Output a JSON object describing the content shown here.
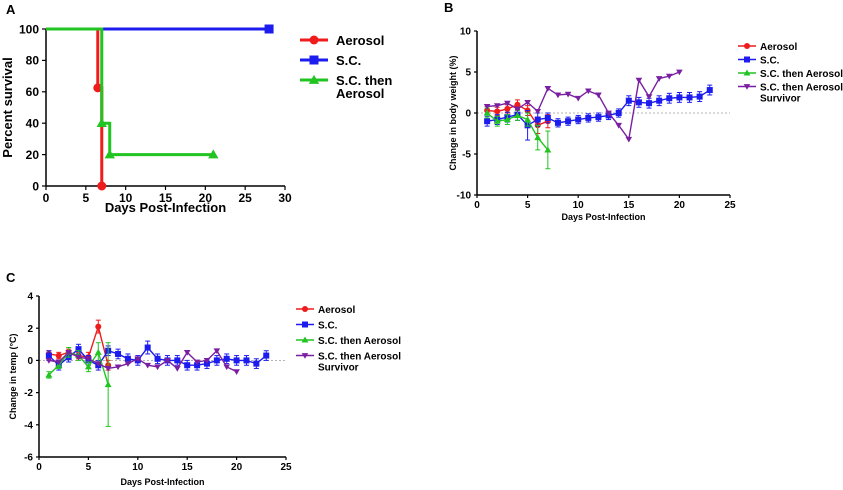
{
  "colors": {
    "aerosol": "#ee1c1c",
    "sc": "#1c1cee",
    "sc_then_aerosol": "#22c422",
    "survivor": "#7a1fa2",
    "axis": "#000000",
    "zero_line": "#9a9a9a"
  },
  "chart_data": [
    {
      "id": "A",
      "panel_label": "A",
      "type": "line",
      "step": true,
      "title": "",
      "xlabel": "Days Post-Infection",
      "ylabel": "Percent survival",
      "xlim": [
        0,
        30
      ],
      "ylim": [
        0,
        100
      ],
      "xticks": [
        0,
        5,
        10,
        15,
        20,
        25,
        30
      ],
      "yticks": [
        0,
        20,
        40,
        60,
        80,
        100
      ],
      "grid": false,
      "legend": "right",
      "series": [
        {
          "name": "Aerosol",
          "color_key": "aerosol",
          "marker": "circle",
          "legend_lines": [
            "Aerosol"
          ],
          "x": [
            0,
            6.5,
            6.5,
            7,
            7
          ],
          "y": [
            100,
            100,
            62.5,
            62.5,
            0
          ],
          "marker_index": [
            2,
            4
          ]
        },
        {
          "name": "S.C.",
          "color_key": "sc",
          "marker": "square",
          "legend_lines": [
            "S.C."
          ],
          "x": [
            0,
            28
          ],
          "y": [
            100,
            100
          ],
          "marker_index": [
            1
          ]
        },
        {
          "name": "S.C. then Aerosol",
          "color_key": "sc_then_aerosol",
          "marker": "triangle",
          "legend_lines": [
            "S.C. then",
            "Aerosol"
          ],
          "x": [
            0,
            7,
            7,
            8,
            8,
            21
          ],
          "y": [
            100,
            100,
            40,
            40,
            20,
            20
          ],
          "marker_index": [
            2,
            4,
            5
          ]
        }
      ]
    },
    {
      "id": "B",
      "panel_label": "B",
      "type": "line",
      "title": "",
      "xlabel": "Days Post-Infection",
      "ylabel": "Change in body weight (%)",
      "xlim": [
        0,
        25
      ],
      "ylim": [
        -10,
        10
      ],
      "xticks": [
        0,
        5,
        10,
        15,
        20,
        25
      ],
      "yticks": [
        -10,
        -5,
        0,
        5,
        10
      ],
      "grid": false,
      "reference_line": 0,
      "legend": "top-right",
      "series": [
        {
          "name": "Aerosol",
          "color_key": "aerosol",
          "marker": "circle",
          "legend_lines": [
            "Aerosol"
          ],
          "x": [
            1,
            2,
            3,
            4,
            5,
            6,
            7
          ],
          "y": [
            0.3,
            0.2,
            0.5,
            1.0,
            0.3,
            -1.5,
            -1.0
          ],
          "err": [
            0.5,
            0.5,
            0.5,
            0.6,
            0.6,
            1.0,
            0.8
          ]
        },
        {
          "name": "S.C.",
          "color_key": "sc",
          "marker": "square",
          "legend_lines": [
            "S.C."
          ],
          "x": [
            1,
            2,
            3,
            4,
            5,
            6,
            7,
            8,
            9,
            10,
            11,
            12,
            13,
            14,
            15,
            16,
            17,
            18,
            19,
            20,
            21,
            22,
            23
          ],
          "y": [
            -1.0,
            -0.8,
            -0.5,
            -0.2,
            -1.5,
            -0.8,
            -0.6,
            -1.2,
            -1.0,
            -0.8,
            -0.6,
            -0.5,
            -0.3,
            0.0,
            1.5,
            1.3,
            1.2,
            1.5,
            1.8,
            1.9,
            1.9,
            2.0,
            2.8
          ],
          "err": [
            0.6,
            0.6,
            0.6,
            0.7,
            1.8,
            0.8,
            0.6,
            0.5,
            0.5,
            0.5,
            0.5,
            0.5,
            0.5,
            0.5,
            0.6,
            0.6,
            0.6,
            0.6,
            0.6,
            0.6,
            0.6,
            0.6,
            0.6
          ]
        },
        {
          "name": "S.C. then Aerosol",
          "color_key": "sc_then_aerosol",
          "marker": "triangle",
          "legend_lines": [
            "S.C. then Aerosol"
          ],
          "x": [
            1,
            2,
            3,
            4,
            5,
            6,
            7
          ],
          "y": [
            0.0,
            -1.0,
            -0.8,
            -0.3,
            -0.8,
            -3.0,
            -4.5
          ],
          "err": [
            0.6,
            0.6,
            0.6,
            0.6,
            0.8,
            1.5,
            2.3
          ]
        },
        {
          "name": "S.C. then Aerosol Survivor",
          "color_key": "survivor",
          "marker": "triangle-down",
          "legend_lines": [
            "S.C. then Aerosol",
            "Survivor"
          ],
          "x": [
            1,
            2,
            3,
            4,
            5,
            6,
            7,
            8,
            9,
            10,
            11,
            12,
            13,
            14,
            15,
            16,
            17,
            18,
            19,
            20
          ],
          "y": [
            0.8,
            0.9,
            1.2,
            0.5,
            1.3,
            0.2,
            3.0,
            2.2,
            2.3,
            1.8,
            2.7,
            2.2,
            0.0,
            -1.5,
            -3.2,
            4.0,
            2.0,
            4.2,
            4.5,
            5.0
          ]
        }
      ]
    },
    {
      "id": "C",
      "panel_label": "C",
      "type": "line",
      "title": "",
      "xlabel": "Days Post-Infection",
      "ylabel": "Change in temp (°C)",
      "xlim": [
        0,
        25
      ],
      "ylim": [
        -6,
        4
      ],
      "xticks": [
        0,
        5,
        10,
        15,
        20,
        25
      ],
      "yticks": [
        -6,
        -4,
        -2,
        0,
        2,
        4
      ],
      "grid": false,
      "reference_line": 0,
      "legend": "right",
      "series": [
        {
          "name": "Aerosol",
          "color_key": "aerosol",
          "marker": "circle",
          "legend_lines": [
            "Aerosol"
          ],
          "x": [
            1,
            2,
            3,
            4,
            5,
            6,
            7
          ],
          "y": [
            0.4,
            0.3,
            0.5,
            0.3,
            0.2,
            2.1,
            -0.3
          ],
          "err": [
            0.2,
            0.2,
            0.2,
            0.2,
            0.3,
            0.4,
            0.3
          ]
        },
        {
          "name": "S.C.",
          "color_key": "sc",
          "marker": "square",
          "legend_lines": [
            "S.C."
          ],
          "x": [
            1,
            2,
            3,
            4,
            5,
            6,
            7,
            8,
            9,
            10,
            11,
            12,
            13,
            14,
            15,
            16,
            17,
            18,
            19,
            20,
            21,
            22,
            23
          ],
          "y": [
            0.3,
            -0.3,
            0.2,
            0.7,
            0.0,
            -0.3,
            0.6,
            0.4,
            0.1,
            0.0,
            0.8,
            0.1,
            0.0,
            0.0,
            -0.3,
            -0.3,
            -0.2,
            0.0,
            0.1,
            0.0,
            0.0,
            -0.2,
            0.3
          ],
          "err": [
            0.3,
            0.3,
            0.3,
            0.3,
            0.3,
            0.3,
            0.3,
            0.3,
            0.3,
            0.3,
            0.4,
            0.3,
            0.3,
            0.3,
            0.3,
            0.3,
            0.3,
            0.3,
            0.3,
            0.3,
            0.3,
            0.3,
            0.3
          ]
        },
        {
          "name": "S.C. then Aerosol",
          "color_key": "sc_then_aerosol",
          "marker": "triangle",
          "legend_lines": [
            "S.C. then Aerosol"
          ],
          "x": [
            1,
            2,
            3,
            4,
            5,
            6,
            7
          ],
          "y": [
            -0.9,
            -0.3,
            0.5,
            0.3,
            -0.4,
            0.5,
            -1.5
          ],
          "err": [
            0.2,
            0.2,
            0.3,
            0.3,
            0.3,
            0.6,
            2.6
          ]
        },
        {
          "name": "S.C. then Aerosol Survivor",
          "color_key": "survivor",
          "marker": "triangle-down",
          "legend_lines": [
            "S.C. then Aerosol",
            "Survivor"
          ],
          "x": [
            1,
            2,
            3,
            4,
            5,
            6,
            7,
            8,
            9,
            10,
            11,
            12,
            13,
            14,
            15,
            16,
            17,
            18,
            19,
            20
          ],
          "y": [
            0.0,
            -0.1,
            0.5,
            0.2,
            0.1,
            -0.2,
            -0.5,
            -0.4,
            -0.2,
            0.1,
            -0.3,
            -0.4,
            0.0,
            -0.5,
            0.5,
            -0.1,
            0.0,
            0.6,
            -0.4,
            -0.7
          ]
        }
      ]
    }
  ]
}
